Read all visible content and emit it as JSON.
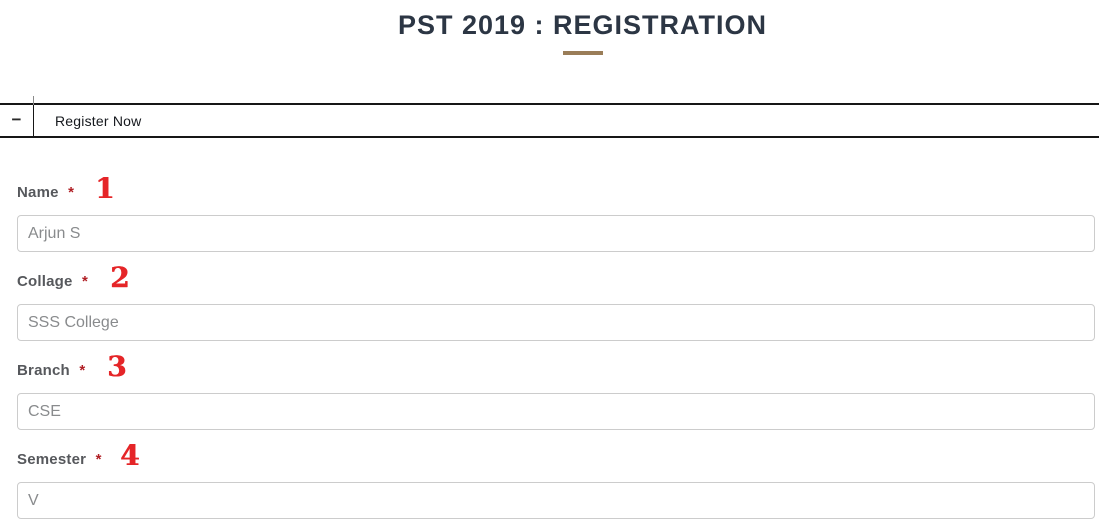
{
  "page": {
    "title": "PST 2019 : REGISTRATION"
  },
  "accordion": {
    "collapse_icon": "−",
    "title": "Register Now"
  },
  "form": {
    "fields": [
      {
        "label": "Name",
        "required_marker": "*",
        "annotation_number": "1",
        "value": "Arjun S"
      },
      {
        "label": "Collage",
        "required_marker": "*",
        "annotation_number": "2",
        "value": "SSS College"
      },
      {
        "label": "Branch",
        "required_marker": "*",
        "annotation_number": "3",
        "value": "CSE"
      },
      {
        "label": "Semester",
        "required_marker": "*",
        "annotation_number": "4",
        "value": "V"
      }
    ]
  },
  "colors": {
    "title_text": "#2c3644",
    "title_underline": "#9a7d58",
    "panel_border": "#161616",
    "label_gray": "#56585c",
    "required_red": "#b01e24",
    "annotation_red": "#e52528",
    "input_text": "#898b8d",
    "input_border": "#cccccc"
  }
}
